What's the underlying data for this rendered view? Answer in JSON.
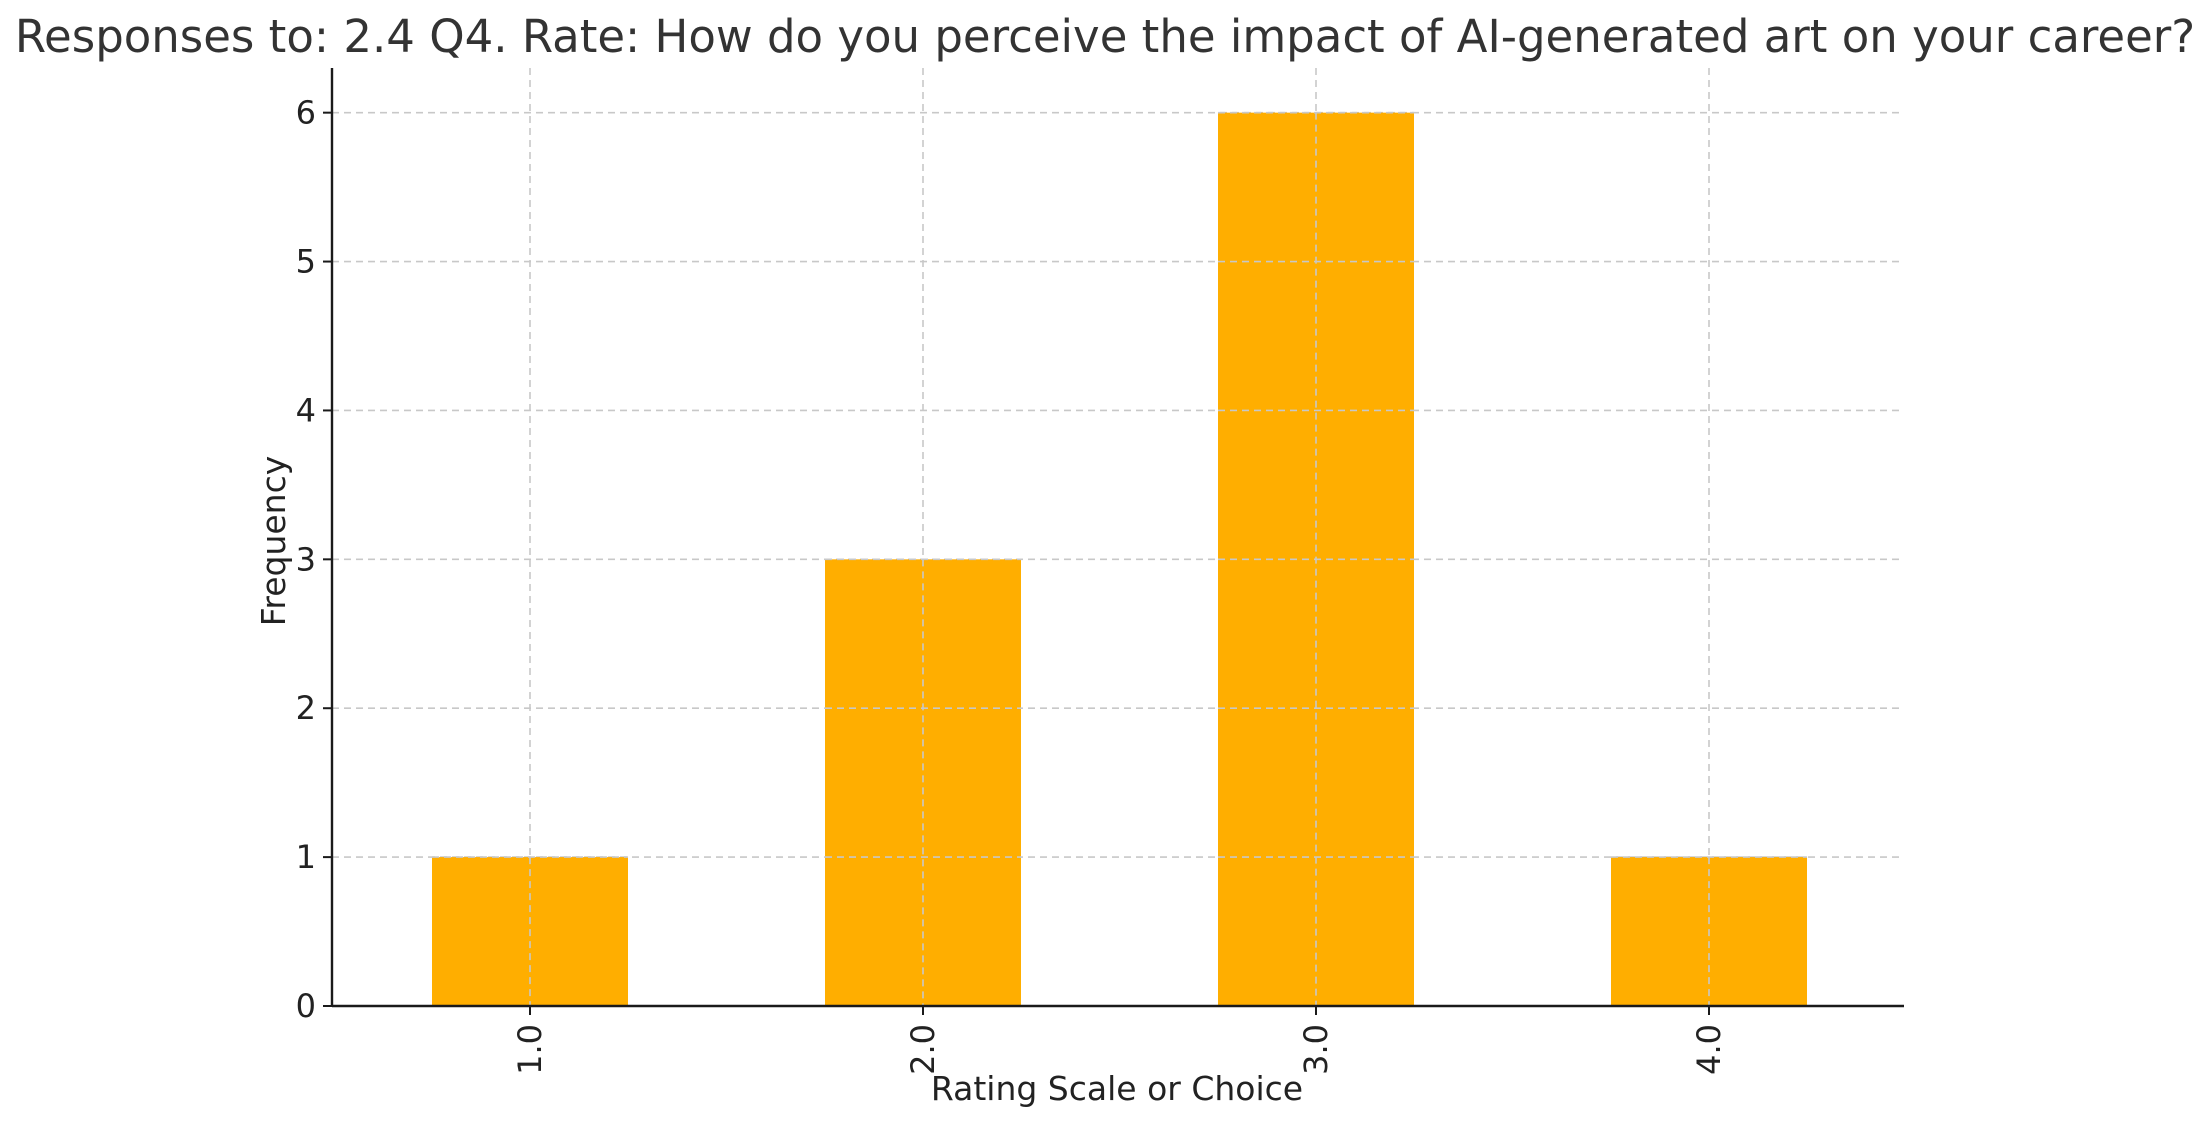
{
  "chart_data": {
    "type": "bar",
    "title": "Responses to: 2.4 Q4. Rate: How do you perceive the impact of AI-generated art on your career?",
    "xlabel": "Rating Scale or Choice",
    "ylabel": "Frequency",
    "categories": [
      "1.0",
      "2.0",
      "3.0",
      "4.0"
    ],
    "values": [
      1,
      3,
      6,
      1
    ],
    "ylim": [
      0,
      6.3
    ],
    "yticks": [
      "0",
      "1",
      "2",
      "3",
      "4",
      "5",
      "6"
    ],
    "grid": true,
    "legend": "none",
    "bar_color": "#FFAE00",
    "x_tick_rotation": "vertical"
  }
}
